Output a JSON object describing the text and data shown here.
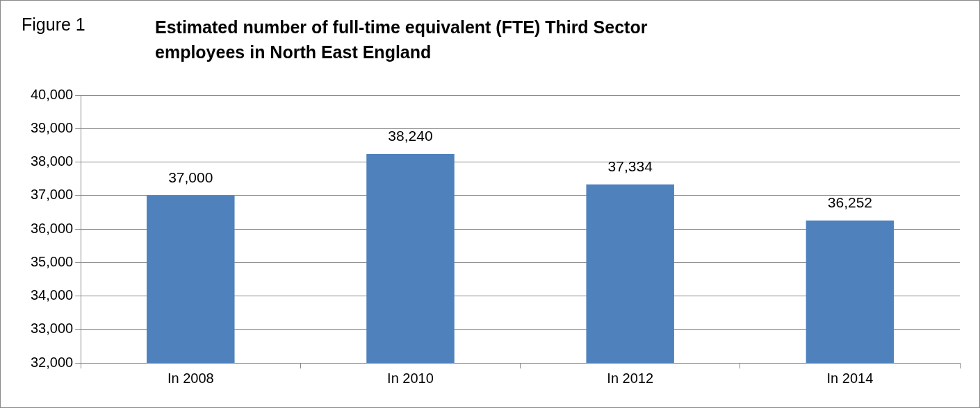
{
  "chart_data": {
    "type": "bar",
    "title": "Estimated number of full-time equivalent (FTE) Third Sector employees in North East England",
    "annotations": [
      "Figure 1"
    ],
    "categories": [
      "In 2008",
      "In 2010",
      "In 2012",
      "In 2014"
    ],
    "values": [
      37000,
      38240,
      37334,
      36252
    ],
    "color": "#4f81bd",
    "value_labels": [
      "37,000",
      "38,240",
      "37,334",
      "36,252"
    ],
    "ylim": [
      32000,
      40000
    ],
    "yticks": [
      {
        "value": 32000,
        "label": "32,000"
      },
      {
        "value": 33000,
        "label": "33,000"
      },
      {
        "value": 34000,
        "label": "34,000"
      },
      {
        "value": 35000,
        "label": "35,000"
      },
      {
        "value": 36000,
        "label": "36,000"
      },
      {
        "value": 37000,
        "label": "37,000"
      },
      {
        "value": 38000,
        "label": "38,000"
      },
      {
        "value": 39000,
        "label": "39,000"
      },
      {
        "value": 40000,
        "label": "40,000"
      }
    ],
    "grid": "y",
    "legend": false
  }
}
